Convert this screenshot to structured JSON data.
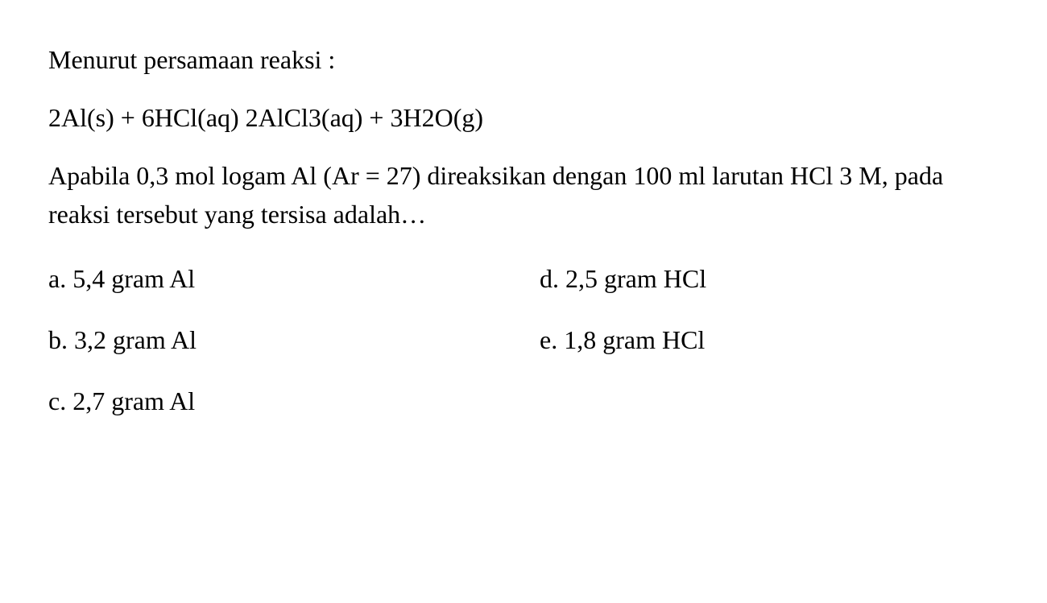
{
  "question": {
    "intro": "Menurut persamaan reaksi :",
    "equation": "2Al(s) + 6HCl(aq) 2AlCl3(aq) + 3H2O(g)",
    "body": "Apabila 0,3 mol logam Al (Ar = 27) direaksikan dengan 100 ml larutan HCl 3 M, pada reaksi tersebut yang tersisa adalah…"
  },
  "options": {
    "a": "a. 5,4 gram Al",
    "b": "b. 3,2 gram Al",
    "c": "c. 2,7 gram Al",
    "d": "d. 2,5 gram HCl",
    "e": "e. 1,8 gram HCl"
  },
  "style": {
    "background_color": "#ffffff",
    "text_color": "#000000",
    "font_family": "Times New Roman",
    "font_size_pt": 24
  }
}
